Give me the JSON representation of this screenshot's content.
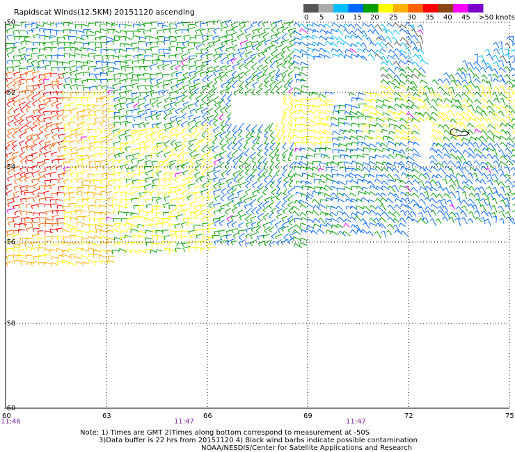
{
  "title": "Rapidscat Winds(12.5KM) 20151120 ascending",
  "legend": {
    "unit_label": ">50 knots",
    "ticks": [
      "0",
      "5",
      "10",
      "15",
      "20",
      "25",
      "30",
      "35",
      "40",
      "45"
    ],
    "colors": [
      "#555555",
      "#aaaaaa",
      "#00bfff",
      "#0066ff",
      "#00a000",
      "#ffff00",
      "#ffb000",
      "#ff6000",
      "#ff0000",
      "#8b4513",
      "#ff00ff",
      "#7a00c8"
    ]
  },
  "axes": {
    "lat_labels": [
      "-50",
      "-52",
      "-54",
      "-56",
      "-58",
      "-60"
    ],
    "lon_labels": [
      "60",
      "63",
      "66",
      "69",
      "72",
      "75"
    ],
    "time_labels": [
      "11:46",
      "11:47",
      "11:47"
    ]
  },
  "notes": {
    "line1": "Note: 1) Times are GMT 2)Times along bottom correspond to measurement at -50S",
    "line2": "3)Data buffer is 22 hrs from 20151120 4) Black wind barbs indicate possible contamination",
    "line3": "NOAA/NESDIS/Center for Satellite Applications and Research"
  }
}
